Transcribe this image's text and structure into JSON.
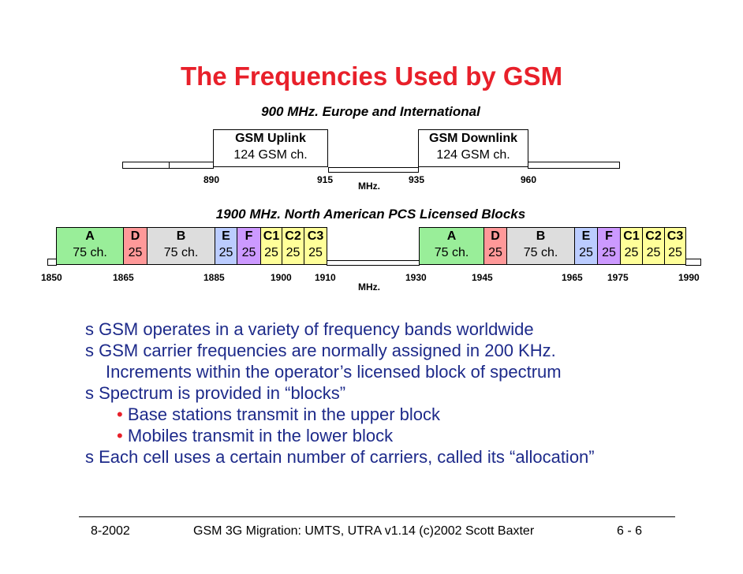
{
  "title": "The Frequencies Used by GSM",
  "gsm900": {
    "heading": "900 MHz. Europe and International",
    "uplink": {
      "name": "GSM Uplink",
      "channels": "124 GSM ch."
    },
    "downlink": {
      "name": "GSM Downlink",
      "channels": "124 GSM ch."
    },
    "ticks": [
      "890",
      "915",
      "935",
      "960"
    ],
    "unit": "MHz."
  },
  "pcs1900": {
    "heading": "1900 MHz. North American PCS Licensed Blocks",
    "lower_blocks": [
      {
        "label": "A",
        "channels": "75 ch.",
        "color": "#99ee99"
      },
      {
        "label": "D",
        "channels": "25",
        "color": "#ff9999"
      },
      {
        "label": "B",
        "channels": "75 ch.",
        "color": "#dddddd"
      },
      {
        "label": "E",
        "channels": "25",
        "color": "#bbccff"
      },
      {
        "label": "F",
        "channels": "25",
        "color": "#cc99ff"
      },
      {
        "label": "C1",
        "channels": "25",
        "color": "#ffff99"
      },
      {
        "label": "C2",
        "channels": "25",
        "color": "#ffff99"
      },
      {
        "label": "C3",
        "channels": "25",
        "color": "#ffff99"
      }
    ],
    "upper_blocks": [
      {
        "label": "A",
        "channels": "75 ch.",
        "color": "#99ee99"
      },
      {
        "label": "D",
        "channels": "25",
        "color": "#ff9999"
      },
      {
        "label": "B",
        "channels": "75 ch.",
        "color": "#dddddd"
      },
      {
        "label": "E",
        "channels": "25",
        "color": "#bbccff"
      },
      {
        "label": "F",
        "channels": "25",
        "color": "#cc99ff"
      },
      {
        "label": "C1",
        "channels": "25",
        "color": "#ffff99"
      },
      {
        "label": "C2",
        "channels": "25",
        "color": "#ffff99"
      },
      {
        "label": "C3",
        "channels": "25",
        "color": "#ffff99"
      }
    ],
    "ticks": [
      "1850",
      "1865",
      "1885",
      "1900",
      "1910",
      "1930",
      "1945",
      "1965",
      "1975",
      "1990"
    ],
    "unit": "MHz."
  },
  "bullets": [
    {
      "marker": "s",
      "text": "GSM operates in a variety of frequency bands worldwide"
    },
    {
      "marker": "s",
      "text": "GSM carrier frequencies are normally assigned in 200 KHz.",
      "text2": "Increments within the operator’s licensed block of spectrum"
    },
    {
      "marker": "s",
      "text": "Spectrum is provided in “blocks”"
    },
    {
      "marker": "•",
      "text": "Base stations transmit in the upper block"
    },
    {
      "marker": "•",
      "text": "Mobiles transmit in the lower block"
    },
    {
      "marker": "s",
      "text": "Each cell uses a certain number of carriers, called its “allocation”"
    }
  ],
  "footer": {
    "date": "8-2002",
    "course": "GSM 3G Migration: UMTS, UTRA v1.14 (c)2002 Scott Baxter",
    "page": "6 - 6"
  }
}
